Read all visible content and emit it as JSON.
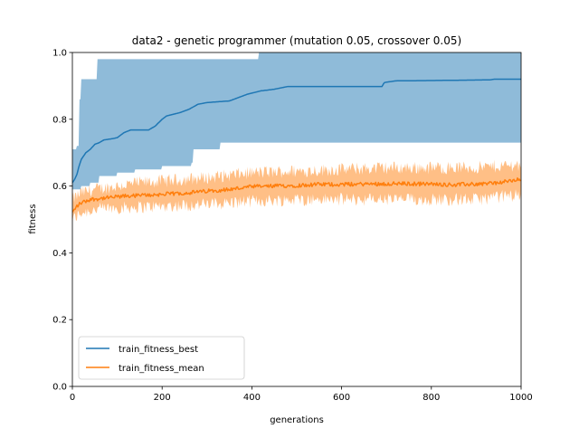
{
  "chart_data": {
    "type": "line",
    "title": "data2 - genetic programmer (mutation 0.05, crossover 0.05)",
    "xlabel": "generations",
    "ylabel": "fitness",
    "xlim": [
      0,
      1000
    ],
    "ylim": [
      0.0,
      1.0
    ],
    "xticks": [
      0,
      200,
      400,
      600,
      800,
      1000
    ],
    "yticks": [
      0.0,
      0.2,
      0.4,
      0.6,
      0.8,
      1.0
    ],
    "xtick_labels": [
      "0",
      "200",
      "400",
      "600",
      "800",
      "1000"
    ],
    "ytick_labels": [
      "0.0",
      "0.2",
      "0.4",
      "0.6",
      "0.8",
      "1.0"
    ],
    "grid": false,
    "legend_position": "lower-left",
    "series": [
      {
        "name": "train_fitness_best",
        "color": "#1f77b4",
        "band_color": "#1f77b4",
        "line_points": [
          [
            0,
            0.61
          ],
          [
            5,
            0.62
          ],
          [
            10,
            0.635
          ],
          [
            15,
            0.66
          ],
          [
            20,
            0.68
          ],
          [
            25,
            0.69
          ],
          [
            30,
            0.7
          ],
          [
            40,
            0.71
          ],
          [
            50,
            0.725
          ],
          [
            60,
            0.73
          ],
          [
            70,
            0.738
          ],
          [
            90,
            0.742
          ],
          [
            100,
            0.745
          ],
          [
            115,
            0.76
          ],
          [
            130,
            0.768
          ],
          [
            170,
            0.768
          ],
          [
            185,
            0.78
          ],
          [
            200,
            0.8
          ],
          [
            210,
            0.81
          ],
          [
            240,
            0.82
          ],
          [
            260,
            0.83
          ],
          [
            280,
            0.845
          ],
          [
            300,
            0.85
          ],
          [
            350,
            0.855
          ],
          [
            390,
            0.875
          ],
          [
            420,
            0.885
          ],
          [
            450,
            0.89
          ],
          [
            480,
            0.898
          ],
          [
            560,
            0.898
          ],
          [
            690,
            0.898
          ],
          [
            695,
            0.91
          ],
          [
            720,
            0.915
          ],
          [
            800,
            0.916
          ],
          [
            930,
            0.918
          ],
          [
            940,
            0.92
          ],
          [
            1000,
            0.92
          ]
        ],
        "band_upper_points": [
          [
            0,
            0.71
          ],
          [
            10,
            0.72
          ],
          [
            15,
            0.86
          ],
          [
            20,
            0.92
          ],
          [
            50,
            0.92
          ],
          [
            55,
            0.98
          ],
          [
            410,
            0.98
          ],
          [
            415,
            1.0
          ],
          [
            1000,
            1.0
          ]
        ],
        "band_lower_points": [
          [
            0,
            0.59
          ],
          [
            20,
            0.6
          ],
          [
            40,
            0.61
          ],
          [
            60,
            0.63
          ],
          [
            100,
            0.64
          ],
          [
            140,
            0.65
          ],
          [
            200,
            0.66
          ],
          [
            265,
            0.67
          ],
          [
            270,
            0.71
          ],
          [
            330,
            0.73
          ],
          [
            1000,
            0.73
          ]
        ]
      },
      {
        "name": "train_fitness_mean",
        "color": "#ff7f0e",
        "band_color": "#ff7f0e",
        "line_points": [
          [
            0,
            0.52
          ],
          [
            10,
            0.54
          ],
          [
            20,
            0.55
          ],
          [
            40,
            0.56
          ],
          [
            80,
            0.565
          ],
          [
            120,
            0.57
          ],
          [
            200,
            0.575
          ],
          [
            260,
            0.58
          ],
          [
            300,
            0.585
          ],
          [
            350,
            0.59
          ],
          [
            400,
            0.598
          ],
          [
            450,
            0.6
          ],
          [
            500,
            0.602
          ],
          [
            550,
            0.605
          ],
          [
            600,
            0.605
          ],
          [
            650,
            0.606
          ],
          [
            700,
            0.607
          ],
          [
            750,
            0.607
          ],
          [
            800,
            0.606
          ],
          [
            850,
            0.604
          ],
          [
            900,
            0.606
          ],
          [
            950,
            0.61
          ],
          [
            1000,
            0.62
          ]
        ],
        "band_upper_points": [
          [
            0,
            0.56
          ],
          [
            20,
            0.58
          ],
          [
            50,
            0.59
          ],
          [
            100,
            0.6
          ],
          [
            150,
            0.61
          ],
          [
            200,
            0.615
          ],
          [
            300,
            0.625
          ],
          [
            400,
            0.64
          ],
          [
            500,
            0.645
          ],
          [
            600,
            0.65
          ],
          [
            700,
            0.655
          ],
          [
            800,
            0.655
          ],
          [
            900,
            0.655
          ],
          [
            1000,
            0.665
          ]
        ],
        "band_lower_points": [
          [
            0,
            0.5
          ],
          [
            20,
            0.52
          ],
          [
            50,
            0.53
          ],
          [
            100,
            0.535
          ],
          [
            200,
            0.54
          ],
          [
            300,
            0.545
          ],
          [
            400,
            0.555
          ],
          [
            500,
            0.56
          ],
          [
            600,
            0.56
          ],
          [
            700,
            0.56
          ],
          [
            800,
            0.56
          ],
          [
            900,
            0.56
          ],
          [
            1000,
            0.575
          ]
        ],
        "noise_line": 0.006,
        "noise_band": 0.02
      }
    ]
  }
}
